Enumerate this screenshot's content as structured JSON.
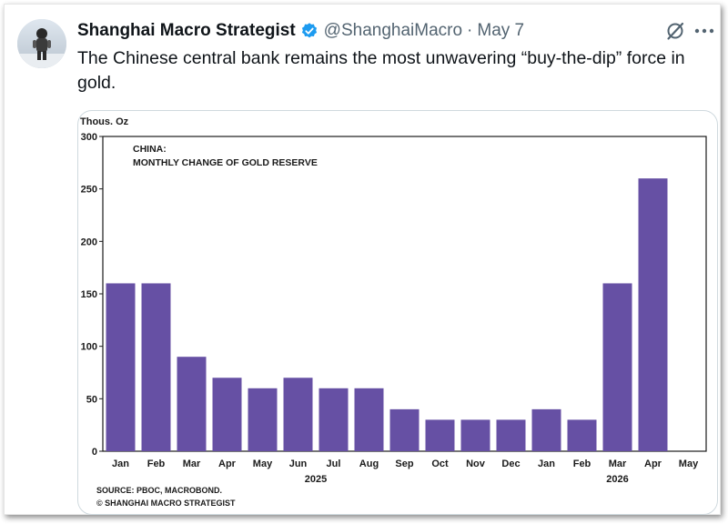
{
  "tweet": {
    "display_name": "Shanghai Macro Strategist",
    "handle": "@ShanghaiMacro",
    "separator": "·",
    "date": "May 7",
    "text": "The Chinese central bank remains the most unwavering “buy-the-dip” force in gold.",
    "icons": {
      "avatar": "avatar-photo",
      "verified": "verified-badge-icon",
      "grok": "grok-icon",
      "more": "more-icon"
    },
    "colors": {
      "verified": "#1d9bf0",
      "secondary_text": "#536471"
    }
  },
  "chart_data": {
    "type": "bar",
    "title": "CHINA:",
    "subtitle": "MONTHLY CHANGE OF GOLD RESERVE",
    "unit_label": "Thous. Oz",
    "categories": [
      "Jan",
      "Feb",
      "Mar",
      "Apr",
      "May",
      "Jun",
      "Jul",
      "Aug",
      "Sep",
      "Oct",
      "Nov",
      "Dec",
      "Jan",
      "Feb",
      "Mar",
      "Apr",
      "May"
    ],
    "values": [
      160,
      160,
      90,
      70,
      60,
      70,
      60,
      60,
      40,
      30,
      30,
      30,
      40,
      30,
      160,
      260,
      null
    ],
    "year_labels": [
      {
        "label": "2025",
        "start": 0,
        "end": 11
      },
      {
        "label": "2026",
        "start": 12,
        "end": 16
      }
    ],
    "ylim": [
      0,
      300
    ],
    "yticks": [
      0,
      50,
      100,
      150,
      200,
      250,
      300
    ],
    "grid": false,
    "bar_color": "#6650a4",
    "source": "SOURCE: PBOC, MACROBOND.",
    "copyright": "© SHANGHAI MACRO STRATEGIST"
  }
}
